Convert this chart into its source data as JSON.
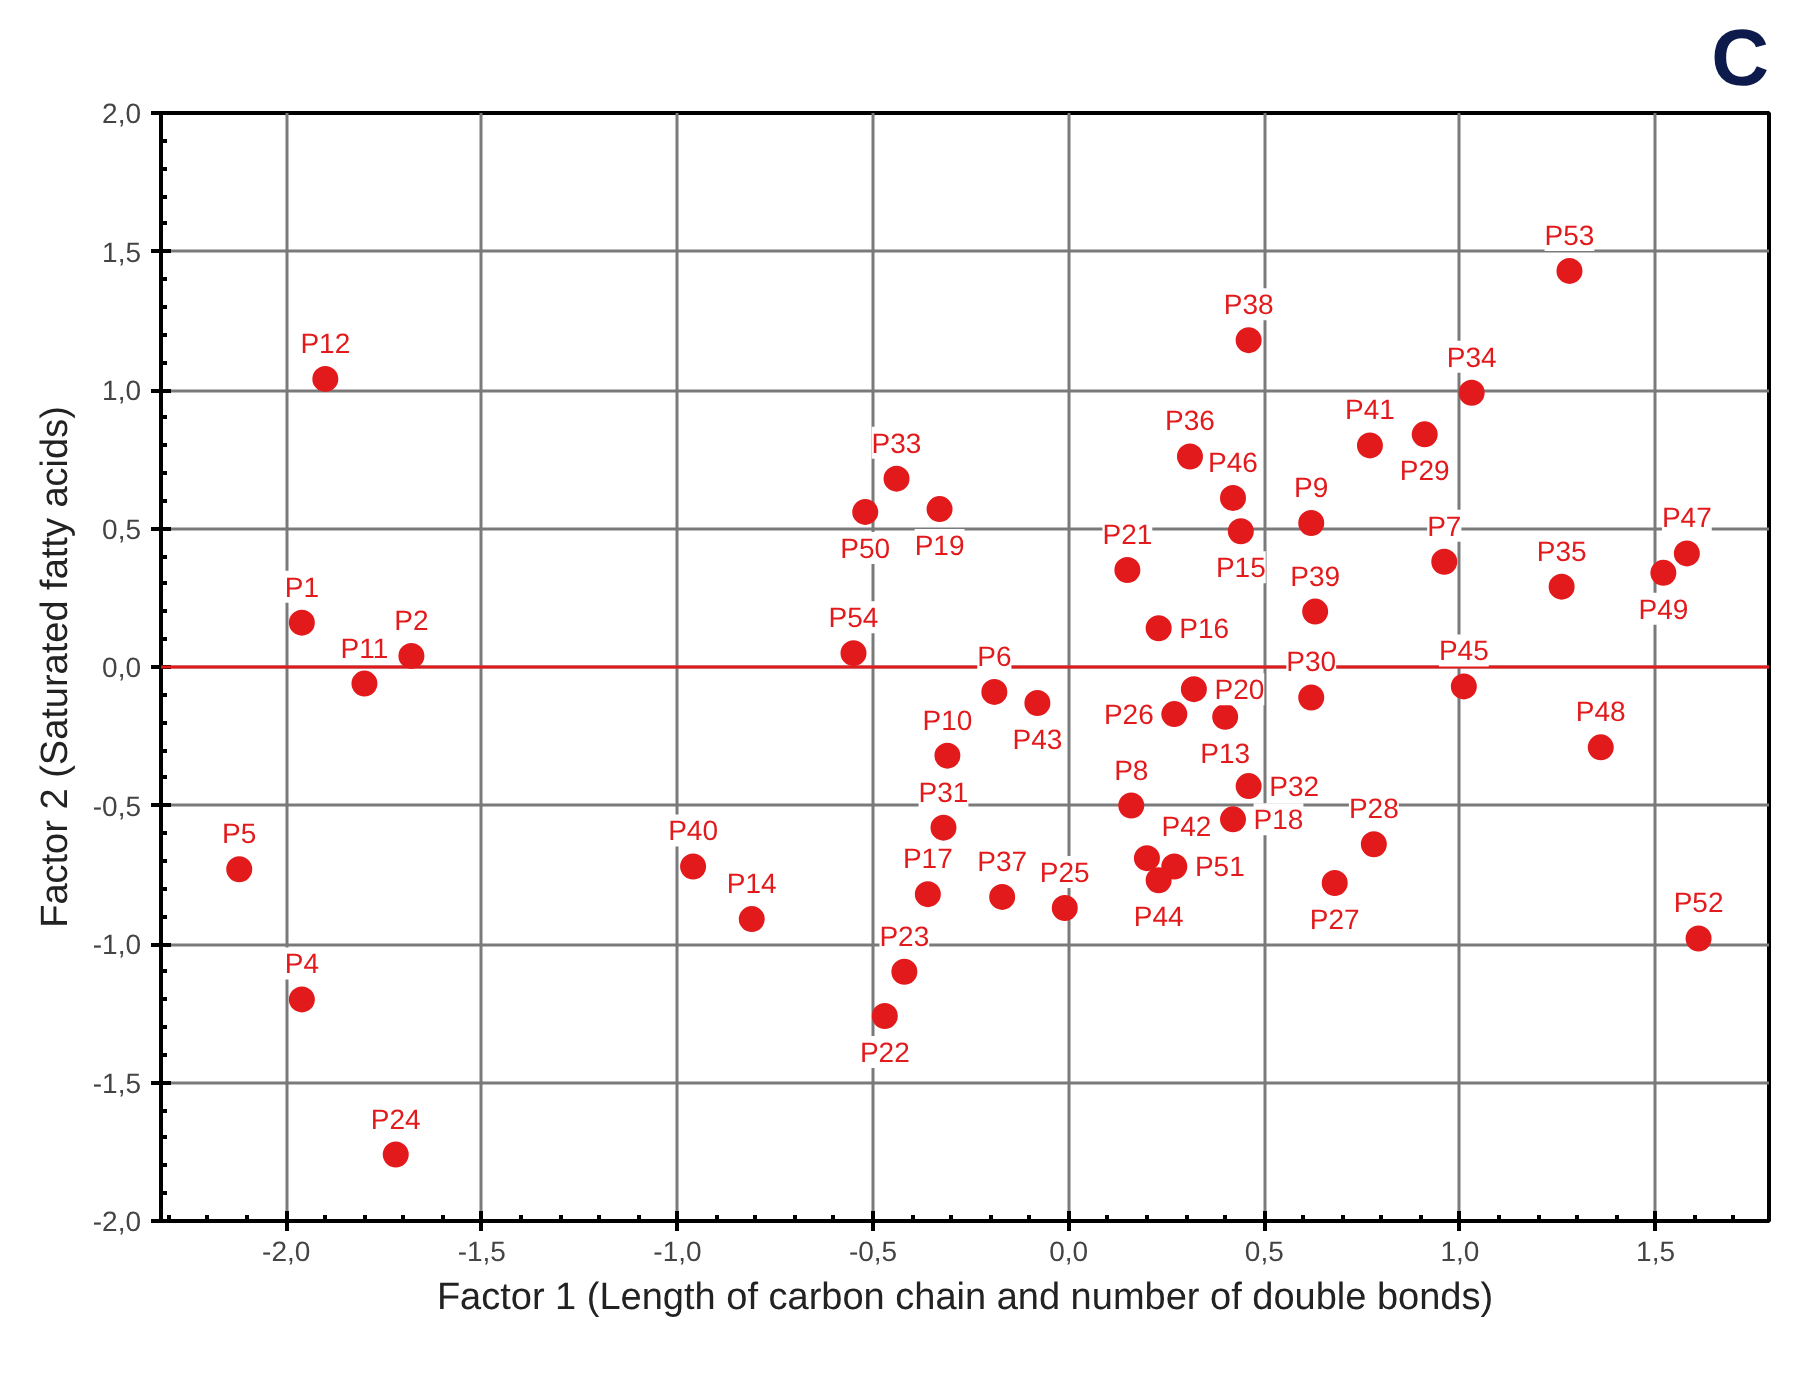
{
  "chart_data": {
    "type": "scatter",
    "title": "C",
    "xlabel": "Factor 1 (Length of carbon chain and number of double bonds)",
    "ylabel": "Factor 2 (Saturated fatty acids)",
    "xlim": [
      -2.32,
      1.79
    ],
    "ylim": [
      -2.0,
      2.0
    ],
    "xticks": [
      {
        "value": -2.0,
        "label": "-2,0"
      },
      {
        "value": -1.5,
        "label": "-1,5"
      },
      {
        "value": -1.0,
        "label": "-1,0"
      },
      {
        "value": -0.5,
        "label": "-0,5"
      },
      {
        "value": 0.0,
        "label": "0,0"
      },
      {
        "value": 0.5,
        "label": "0,5"
      },
      {
        "value": 1.0,
        "label": "1,0"
      },
      {
        "value": 1.5,
        "label": "1,5"
      }
    ],
    "yticks": [
      {
        "value": -2.0,
        "label": "-2,0"
      },
      {
        "value": -1.5,
        "label": "-1,5"
      },
      {
        "value": -1.0,
        "label": "-1,0"
      },
      {
        "value": -0.5,
        "label": "-0,5"
      },
      {
        "value": 0.0,
        "label": "0,0"
      },
      {
        "value": 0.5,
        "label": "0,5"
      },
      {
        "value": 1.0,
        "label": "1,0"
      },
      {
        "value": 1.5,
        "label": "1,5"
      },
      {
        "value": 2.0,
        "label": "2,0"
      }
    ],
    "grid": true,
    "marker": "circle",
    "color": "#e31a1c",
    "x": [
      -1.9,
      -1.96,
      -1.68,
      -1.8,
      -2.12,
      -1.96,
      -1.72,
      -0.44,
      -0.52,
      -0.33,
      0.15,
      0.23,
      -0.55,
      0.31,
      -0.19,
      -0.08,
      1.28,
      0.46,
      1.03,
      0.77,
      0.91,
      0.42,
      0.44,
      0.62,
      0.96,
      1.26,
      1.58,
      1.52,
      0.63,
      0.32,
      1.01,
      0.62,
      0.4,
      -0.31,
      0.27,
      0.16,
      -0.32,
      -0.96,
      -0.81,
      -0.36,
      -0.17,
      -0.01,
      0.2,
      0.27,
      0.23,
      -0.42,
      -0.47,
      0.46,
      0.42,
      0.78,
      0.68,
      1.36,
      1.61
    ],
    "values": [
      1.04,
      0.16,
      0.04,
      -0.06,
      -0.73,
      -1.2,
      -1.76,
      0.68,
      0.56,
      0.57,
      0.35,
      0.14,
      0.05,
      0.76,
      -0.09,
      -0.13,
      1.43,
      1.18,
      0.99,
      0.8,
      0.84,
      0.61,
      0.49,
      0.52,
      0.38,
      0.29,
      0.41,
      0.34,
      0.2,
      -0.08,
      -0.07,
      -0.11,
      -0.18,
      -0.32,
      -0.17,
      -0.5,
      -0.58,
      -0.72,
      -0.91,
      -0.82,
      -0.83,
      -0.87,
      -0.69,
      -0.72,
      -0.77,
      -1.1,
      -1.26,
      -0.43,
      -0.55,
      -0.64,
      -0.78,
      -0.29,
      -0.98
    ],
    "ref_lines": [
      {
        "axis": "y",
        "value": 0,
        "color": "#e31a1c"
      }
    ],
    "annotations": [
      {
        "text": "P12",
        "x": -1.9,
        "y": 1.04
      },
      {
        "text": "P1",
        "x": -1.96,
        "y": 0.16
      },
      {
        "text": "P2",
        "x": -1.68,
        "y": 0.04
      },
      {
        "text": "P11",
        "x": -1.8,
        "y": -0.06
      },
      {
        "text": "P5",
        "x": -2.12,
        "y": -0.73
      },
      {
        "text": "P4",
        "x": -1.96,
        "y": -1.2
      },
      {
        "text": "P24",
        "x": -1.72,
        "y": -1.76
      },
      {
        "text": "P33",
        "x": -0.44,
        "y": 0.68
      },
      {
        "text": "P50",
        "x": -0.52,
        "y": 0.56
      },
      {
        "text": "P19",
        "x": -0.33,
        "y": 0.57
      },
      {
        "text": "P21",
        "x": 0.15,
        "y": 0.35
      },
      {
        "text": "P16",
        "x": 0.23,
        "y": 0.14
      },
      {
        "text": "P54",
        "x": -0.55,
        "y": 0.05
      },
      {
        "text": "P36",
        "x": 0.31,
        "y": 0.76
      },
      {
        "text": "P6",
        "x": -0.19,
        "y": -0.09
      },
      {
        "text": "P43",
        "x": -0.08,
        "y": -0.13
      },
      {
        "text": "P53",
        "x": 1.28,
        "y": 1.43
      },
      {
        "text": "P38",
        "x": 0.46,
        "y": 1.18
      },
      {
        "text": "P34",
        "x": 1.03,
        "y": 0.99
      },
      {
        "text": "P41",
        "x": 0.77,
        "y": 0.8
      },
      {
        "text": "P29",
        "x": 0.91,
        "y": 0.84
      },
      {
        "text": "P46",
        "x": 0.42,
        "y": 0.61
      },
      {
        "text": "P15",
        "x": 0.44,
        "y": 0.49
      },
      {
        "text": "P9",
        "x": 0.62,
        "y": 0.52
      },
      {
        "text": "P7",
        "x": 0.96,
        "y": 0.38
      },
      {
        "text": "P35",
        "x": 1.26,
        "y": 0.29
      },
      {
        "text": "P47",
        "x": 1.58,
        "y": 0.41
      },
      {
        "text": "P49",
        "x": 1.52,
        "y": 0.34
      },
      {
        "text": "P39",
        "x": 0.63,
        "y": 0.2
      },
      {
        "text": "P20",
        "x": 0.32,
        "y": -0.08
      },
      {
        "text": "P45",
        "x": 1.01,
        "y": -0.07
      },
      {
        "text": "P30",
        "x": 0.62,
        "y": -0.11
      },
      {
        "text": "P13",
        "x": 0.4,
        "y": -0.18
      },
      {
        "text": "P10",
        "x": -0.31,
        "y": -0.32
      },
      {
        "text": "P26",
        "x": 0.27,
        "y": -0.17
      },
      {
        "text": "P8",
        "x": 0.16,
        "y": -0.5
      },
      {
        "text": "P31",
        "x": -0.32,
        "y": -0.58
      },
      {
        "text": "P40",
        "x": -0.96,
        "y": -0.72
      },
      {
        "text": "P14",
        "x": -0.81,
        "y": -0.91
      },
      {
        "text": "P17",
        "x": -0.36,
        "y": -0.82
      },
      {
        "text": "P37",
        "x": -0.17,
        "y": -0.83
      },
      {
        "text": "P25",
        "x": -0.01,
        "y": -0.87
      },
      {
        "text": "P42",
        "x": 0.2,
        "y": -0.69
      },
      {
        "text": "P51",
        "x": 0.27,
        "y": -0.72
      },
      {
        "text": "P44",
        "x": 0.23,
        "y": -0.77
      },
      {
        "text": "P23",
        "x": -0.42,
        "y": -1.1
      },
      {
        "text": "P22",
        "x": -0.47,
        "y": -1.26
      },
      {
        "text": "P32",
        "x": 0.46,
        "y": -0.43
      },
      {
        "text": "P18",
        "x": 0.42,
        "y": -0.55
      },
      {
        "text": "P28",
        "x": 0.78,
        "y": -0.64
      },
      {
        "text": "P27",
        "x": 0.68,
        "y": -0.78
      },
      {
        "text": "P48",
        "x": 1.36,
        "y": -0.29
      },
      {
        "text": "P52",
        "x": 1.61,
        "y": -0.98
      }
    ]
  }
}
